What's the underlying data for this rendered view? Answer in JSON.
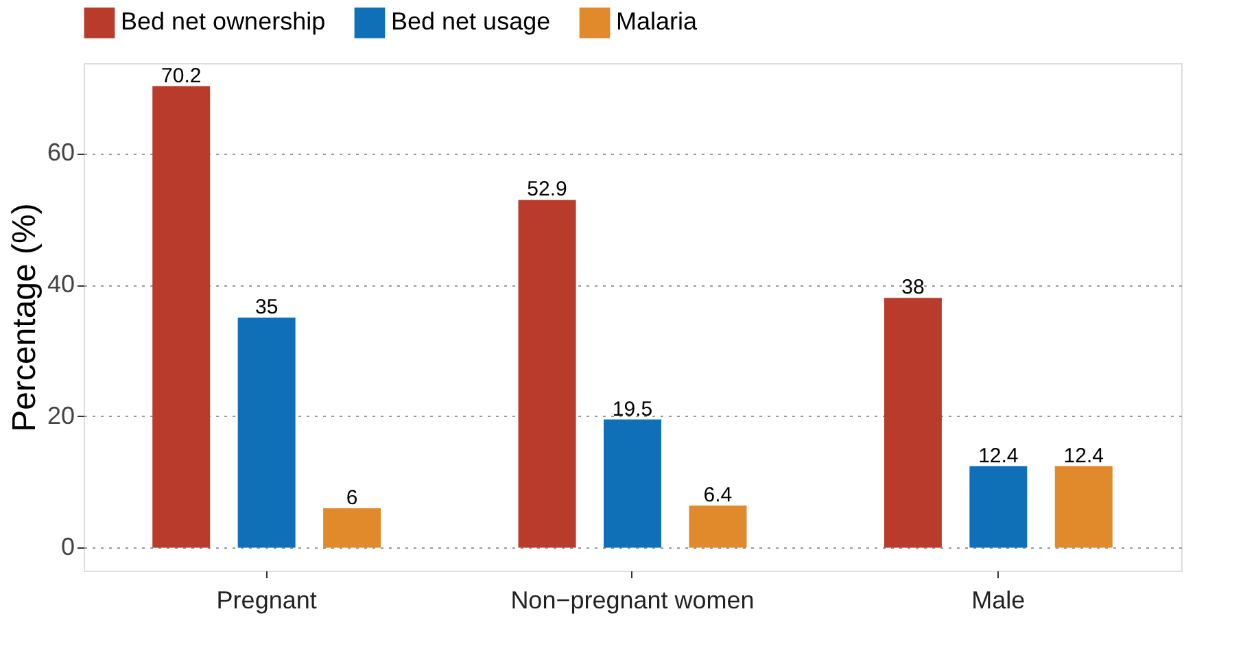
{
  "chart_data": {
    "type": "bar",
    "ylabel": "Percentage (%)",
    "categories": [
      "Pregnant",
      "Non−pregnant women",
      "Male"
    ],
    "series": [
      {
        "name": "Bed net ownership",
        "color": "#b83b2b",
        "values": [
          70.2,
          52.9,
          38
        ]
      },
      {
        "name": "Bed net usage",
        "color": "#0f70b7",
        "values": [
          35,
          19.5,
          12.4
        ]
      },
      {
        "name": "Malaria",
        "color": "#e08a2c",
        "values": [
          6,
          6.4,
          12.4
        ]
      }
    ],
    "ylim": [
      -3.5,
      73.7
    ],
    "yticks": [
      0,
      20,
      40,
      60
    ],
    "grid": "y",
    "legend": "top",
    "data_labels": true
  }
}
